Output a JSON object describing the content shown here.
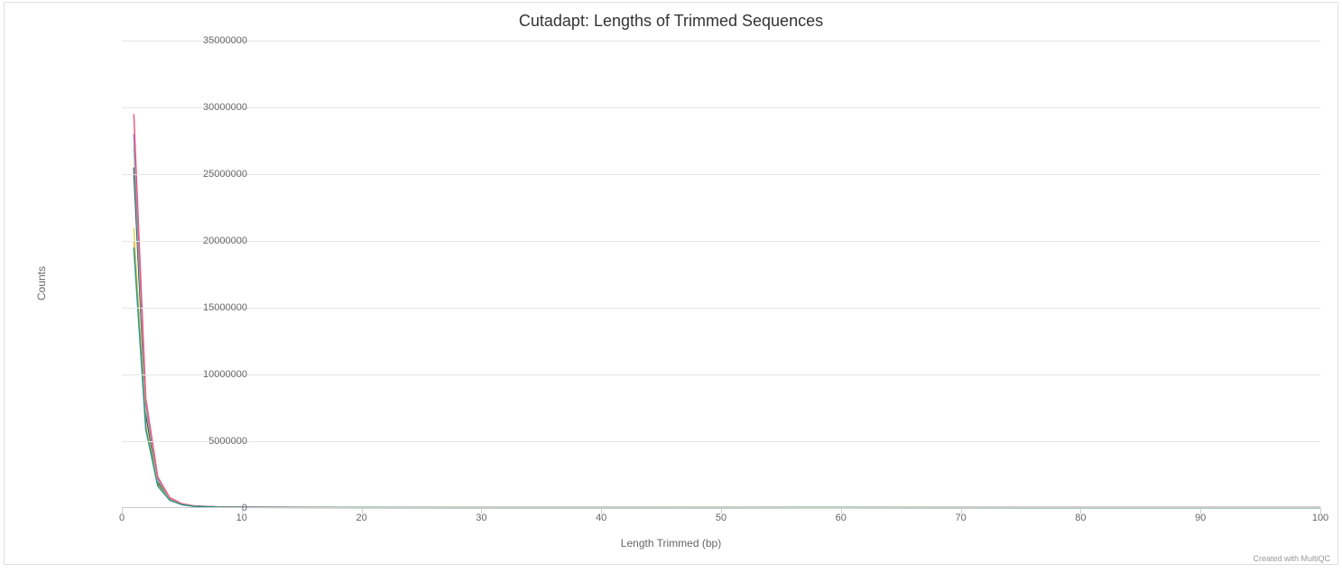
{
  "chart": {
    "type": "line",
    "title": "Cutadapt: Lengths of Trimmed Sequences",
    "title_fontsize": 18,
    "title_color": "#333333",
    "background_color": "#ffffff",
    "border_color": "#e0e0e0",
    "grid_color": "#e6e6e6",
    "axis_line_color": "#cccccc",
    "tick_label_color": "#666666",
    "tick_fontsize": 11,
    "axis_label_fontsize": 12,
    "axis_label_color": "#666666",
    "xlabel": "Length Trimmed (bp)",
    "ylabel": "Counts",
    "xlim": [
      0,
      100
    ],
    "ylim": [
      0,
      35000000
    ],
    "xtick_step": 10,
    "ytick_step": 5000000,
    "xticks": [
      0,
      10,
      20,
      30,
      40,
      50,
      60,
      70,
      80,
      90,
      100
    ],
    "yticks": [
      0,
      5000000,
      10000000,
      15000000,
      20000000,
      25000000,
      30000000,
      35000000
    ],
    "line_width": 1.5,
    "credit_text": "Created with MultiQC",
    "credit_color": "#999999",
    "series": [
      {
        "color": "#7cb5ec",
        "x": [
          1,
          2,
          3,
          4,
          5,
          6,
          8,
          10,
          15,
          20,
          30,
          40,
          50,
          60,
          70,
          75,
          100
        ],
        "y": [
          25000000,
          7200000,
          2000000,
          700000,
          300000,
          150000,
          80000,
          60000,
          50000,
          45000,
          40000,
          40000,
          42000,
          45000,
          40000,
          30000,
          30000
        ]
      },
      {
        "color": "#434348",
        "x": [
          1,
          2,
          3,
          4,
          5,
          6,
          8,
          10,
          15,
          20,
          30,
          40,
          50,
          60,
          70,
          75,
          100
        ],
        "y": [
          25500000,
          7000000,
          1900000,
          650000,
          280000,
          140000,
          75000,
          55000,
          48000,
          43000,
          38000,
          38000,
          40000,
          43000,
          38000,
          28000,
          28000
        ]
      },
      {
        "color": "#90ed7d",
        "x": [
          1,
          2,
          3,
          4,
          5,
          6,
          8,
          10,
          15,
          20,
          30,
          40,
          50,
          60,
          70,
          75,
          100
        ],
        "y": [
          27000000,
          7500000,
          2100000,
          720000,
          310000,
          155000,
          82000,
          62000,
          52000,
          46000,
          41000,
          41000,
          43000,
          46000,
          41000,
          31000,
          31000
        ]
      },
      {
        "color": "#f7a35c",
        "x": [
          1,
          2,
          3,
          4,
          5,
          6,
          8,
          10,
          15,
          20,
          30,
          40,
          50,
          60,
          70,
          75,
          100
        ],
        "y": [
          20000000,
          6000000,
          1700000,
          600000,
          260000,
          130000,
          70000,
          52000,
          45000,
          41000,
          36000,
          36000,
          38000,
          41000,
          36000,
          27000,
          27000
        ]
      },
      {
        "color": "#8085e9",
        "x": [
          1,
          2,
          3,
          4,
          5,
          6,
          8,
          10,
          15,
          20,
          30,
          40,
          50,
          60,
          70,
          75,
          100
        ],
        "y": [
          28000000,
          7800000,
          2200000,
          750000,
          320000,
          160000,
          85000,
          64000,
          54000,
          48000,
          43000,
          43000,
          45000,
          48000,
          43000,
          33000,
          33000
        ]
      },
      {
        "color": "#f15c80",
        "x": [
          1,
          2,
          3,
          4,
          5,
          6,
          8,
          10,
          15,
          20,
          30,
          40,
          50,
          60,
          70,
          75,
          100
        ],
        "y": [
          29500000,
          8200000,
          2320000,
          780000,
          330000,
          165000,
          88000,
          66000,
          56000,
          50000,
          45000,
          45000,
          47000,
          50000,
          45000,
          35000,
          35000
        ]
      },
      {
        "color": "#e4d354",
        "x": [
          1,
          2,
          3,
          4,
          5,
          6,
          8,
          10,
          15,
          20,
          30,
          40,
          50,
          60,
          70,
          75,
          100
        ],
        "y": [
          21000000,
          6200000,
          1750000,
          610000,
          265000,
          132000,
          71000,
          53000,
          46000,
          42000,
          37000,
          37000,
          39000,
          42000,
          37000,
          28000,
          28000
        ]
      },
      {
        "color": "#2b908f",
        "x": [
          1,
          2,
          3,
          4,
          5,
          6,
          8,
          10,
          15,
          20,
          30,
          40,
          50,
          60,
          70,
          75,
          100
        ],
        "y": [
          19500000,
          5900000,
          1650000,
          590000,
          255000,
          128000,
          69000,
          51000,
          44000,
          40000,
          35000,
          35000,
          37000,
          40000,
          35000,
          26000,
          26000
        ]
      }
    ]
  }
}
